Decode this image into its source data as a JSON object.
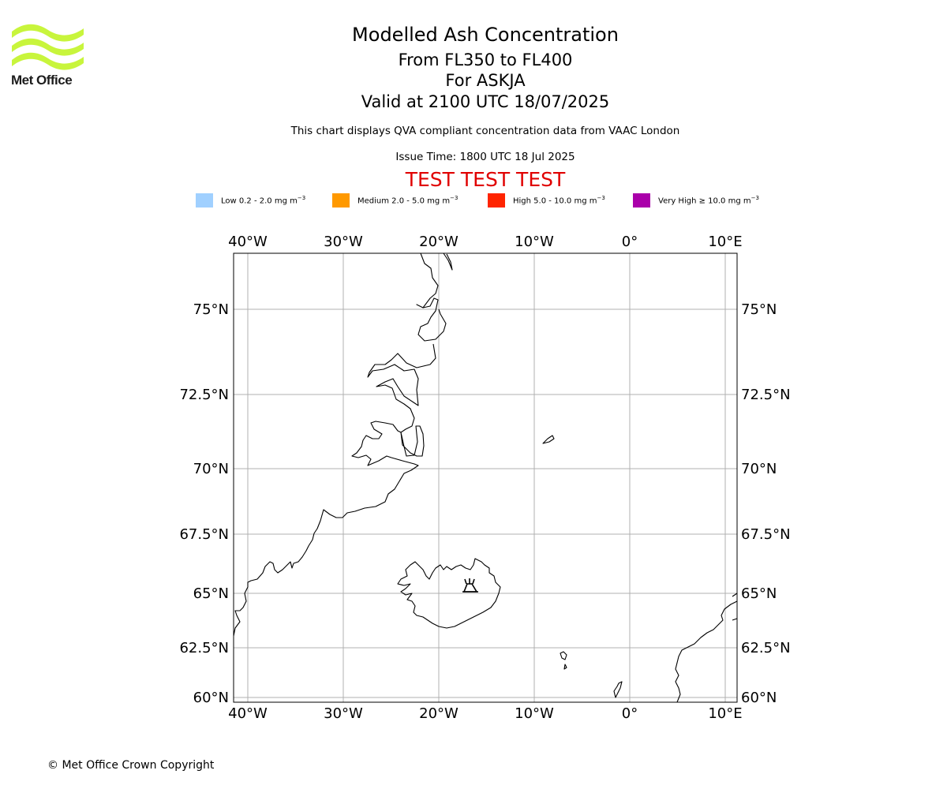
{
  "logo": {
    "text": "Met Office",
    "color": "#c8f53c"
  },
  "header": {
    "title": "Modelled Ash Concentration",
    "levels": "From FL350 to FL400",
    "volcano": "For ASKJA",
    "valid": "Valid at 2100 UTC 18/07/2025",
    "description": "This chart displays QVA compliant concentration data from VAAC London",
    "issue_time": "Issue Time: 1800 UTC 18 Jul 2025",
    "test_banner": "TEST TEST TEST",
    "test_color": "#e00000"
  },
  "legend": [
    {
      "label": "Low 0.2 - 2.0 mg m",
      "sup": "−3",
      "color": "#a0d0ff"
    },
    {
      "label": "Medium 2.0 - 5.0 mg m",
      "sup": "−3",
      "color": "#ff9900"
    },
    {
      "label": "High 5.0 - 10.0 mg m",
      "sup": "−3",
      "color": "#ff2400"
    },
    {
      "label": "Very High  ≥  10.0 mg m",
      "sup": "−3",
      "color": "#aa00aa"
    }
  ],
  "map": {
    "lon_ticks": [
      "40°W",
      "30°W",
      "20°W",
      "10°W",
      "0°",
      "10°E"
    ],
    "lat_ticks": [
      "75°N",
      "72.5°N",
      "70°N",
      "67.5°N",
      "65°N",
      "62.5°N",
      "60°N"
    ],
    "volcano_symbol": "volcano-icon"
  },
  "footer": {
    "copyright": "© Met Office Crown Copyright"
  }
}
